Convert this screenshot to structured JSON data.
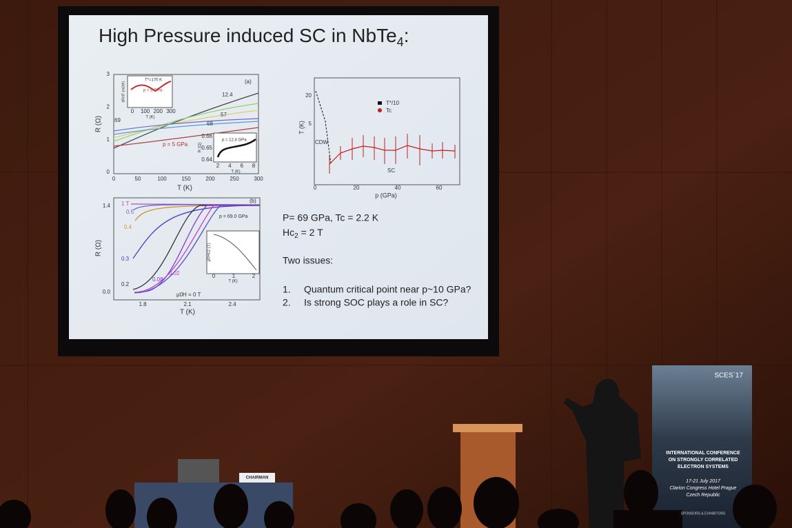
{
  "slide": {
    "title": {
      "text": "High Pressure induced SC in NbTe",
      "subscript": "4",
      "end": ":"
    },
    "plot_a": {
      "panel": "(a)",
      "y_label": "R (Ω)",
      "x_label": "T (K)",
      "yticks": [
        "0",
        "1",
        "2",
        "3"
      ],
      "xticks": [
        "0",
        "50",
        "100",
        "150",
        "200",
        "250",
        "300"
      ],
      "curve_labels": [
        "12.4",
        "69",
        "57",
        "68",
        "p = 5 GPa"
      ],
      "inset_top": {
        "y_label": "dR/dT (mΩ/K)",
        "x_label": "T (K)",
        "xticks": [
          "0",
          "100",
          "200",
          "300"
        ],
        "note1": "T*=170 K",
        "note2": "p = 5 GPa"
      },
      "inset_bottom": {
        "y_label": "R (Ω)",
        "x_label": "T (K)",
        "note": "p = 12.4 GPa",
        "yticks": [
          "0.64",
          "0.65",
          "0.66"
        ],
        "xticks": [
          "2",
          "4",
          "6",
          "8"
        ]
      }
    },
    "plot_b": {
      "panel": "(b)",
      "y_label": "R (Ω)",
      "x_label": "T (K)",
      "yticks": [
        "0.0",
        "1.4"
      ],
      "xticks": [
        "1.8",
        "2.1",
        "2.4"
      ],
      "note": "p = 69.0 GPa",
      "field_labels": [
        "1 T",
        "0.5",
        "0.4",
        "0.3",
        "0.2",
        "0.08",
        "0.02",
        "μ0H = 0 T"
      ],
      "inset": {
        "y_label": "μ0Hc2 (T)",
        "x_label": "T (K)",
        "xticks": [
          "0",
          "1",
          "2"
        ]
      }
    },
    "plot_c": {
      "y_label": "T (K)",
      "x_label": "p (GPa)",
      "yticks": [
        "20",
        "5"
      ],
      "xticks": [
        "0",
        "20",
        "40",
        "60"
      ],
      "legend": [
        "T*/10",
        "Tc"
      ],
      "region_labels": [
        "CDW",
        "SC"
      ]
    },
    "text": {
      "line1": "P= 69 GPa,  Tc = 2.2 K",
      "hc": "Hc",
      "hc_sub": "2",
      "hc_end": " = 2 T",
      "issues_title": "Two issues:",
      "issues": [
        {
          "num": "1.",
          "text": "Quantum critical point near p~10 GPa?"
        },
        {
          "num": "2.",
          "text": "Is strong SOC plays a role in SC?"
        }
      ]
    }
  },
  "banner": {
    "title": "SCES`17",
    "lines": [
      "INTERNATIONAL CONFERENCE",
      "ON STRONGLY CORRELATED",
      "ELECTRON SYSTEMS"
    ],
    "date": "17-21 July 2017",
    "venue": "Clarion Congress Hotel Prague",
    "country": "Czech Republic",
    "footer": "SPONSORS & EXHIBITORS"
  },
  "table_sign": "CHAIRMAN"
}
